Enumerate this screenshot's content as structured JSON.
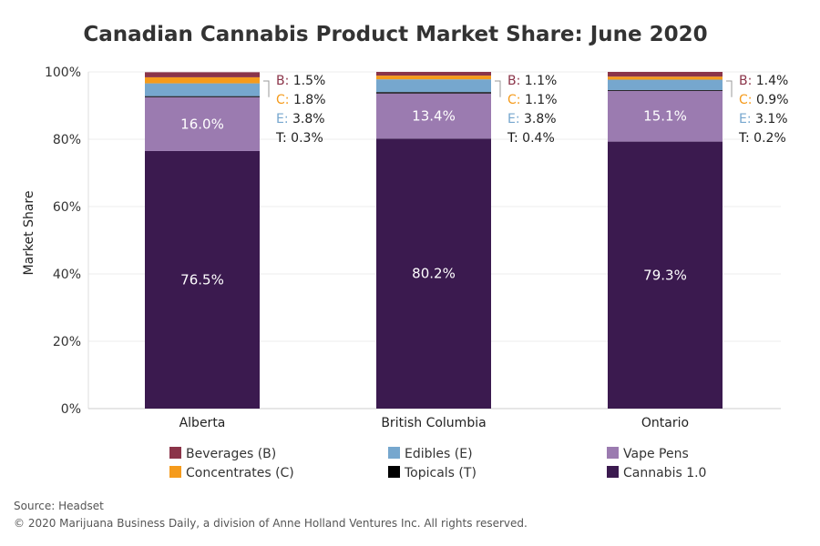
{
  "chart_data": {
    "type": "bar",
    "stacked": true,
    "title": "Canadian Cannabis Product Market Share: June 2020",
    "ylabel": "Market Share",
    "xlabel": "",
    "ylim": [
      0,
      100
    ],
    "y_ticks": [
      "0%",
      "20%",
      "40%",
      "60%",
      "80%",
      "100%"
    ],
    "y_tick_values": [
      0,
      20,
      40,
      60,
      80,
      100
    ],
    "categories": [
      "Alberta",
      "British Columbia",
      "Ontario"
    ],
    "series": [
      {
        "name": "Cannabis 1.0",
        "abbr": "",
        "color": "#3b1a4f",
        "values": [
          76.5,
          80.2,
          79.3
        ],
        "labels": [
          "76.5%",
          "80.2%",
          "79.3%"
        ]
      },
      {
        "name": "Vape Pens",
        "abbr": "",
        "color": "#9b7bb0",
        "values": [
          16.0,
          13.4,
          15.1
        ],
        "labels": [
          "16.0%",
          "13.4%",
          "15.1%"
        ]
      },
      {
        "name": "Topicals (T)",
        "abbr": "T",
        "color": "#000000",
        "values": [
          0.3,
          0.4,
          0.2
        ],
        "labels": [
          "0.3%",
          "0.4%",
          "0.2%"
        ]
      },
      {
        "name": "Edibles (E)",
        "abbr": "E",
        "color": "#76a7ce",
        "values": [
          3.8,
          3.8,
          3.1
        ],
        "labels": [
          "3.8%",
          "3.8%",
          "3.1%"
        ]
      },
      {
        "name": "Concentrates (C)",
        "abbr": "C",
        "color": "#f59b1c",
        "values": [
          1.8,
          1.1,
          0.9
        ],
        "labels": [
          "1.8%",
          "1.1%",
          "0.9%"
        ]
      },
      {
        "name": "Beverages (B)",
        "abbr": "B",
        "color": "#8b3449",
        "values": [
          1.5,
          1.1,
          1.4
        ],
        "labels": [
          "1.5%",
          "1.1%",
          "1.4%"
        ]
      }
    ],
    "annotation_order": [
      "B",
      "C",
      "E",
      "T"
    ],
    "legend": [
      [
        {
          "name": "Beverages (B)",
          "color": "#8b3449"
        },
        {
          "name": "Edibles (E)",
          "color": "#76a7ce"
        },
        {
          "name": "Vape Pens",
          "color": "#9b7bb0"
        }
      ],
      [
        {
          "name": "Concentrates (C)",
          "color": "#f59b1c"
        },
        {
          "name": "Topicals (T)",
          "color": "#000000"
        },
        {
          "name": "Cannabis 1.0",
          "color": "#3b1a4f"
        }
      ]
    ]
  },
  "footer": {
    "source": "Source: Headset",
    "copyright": "© 2020 Marijuana Business Daily, a division of Anne Holland Ventures Inc. All rights reserved."
  }
}
